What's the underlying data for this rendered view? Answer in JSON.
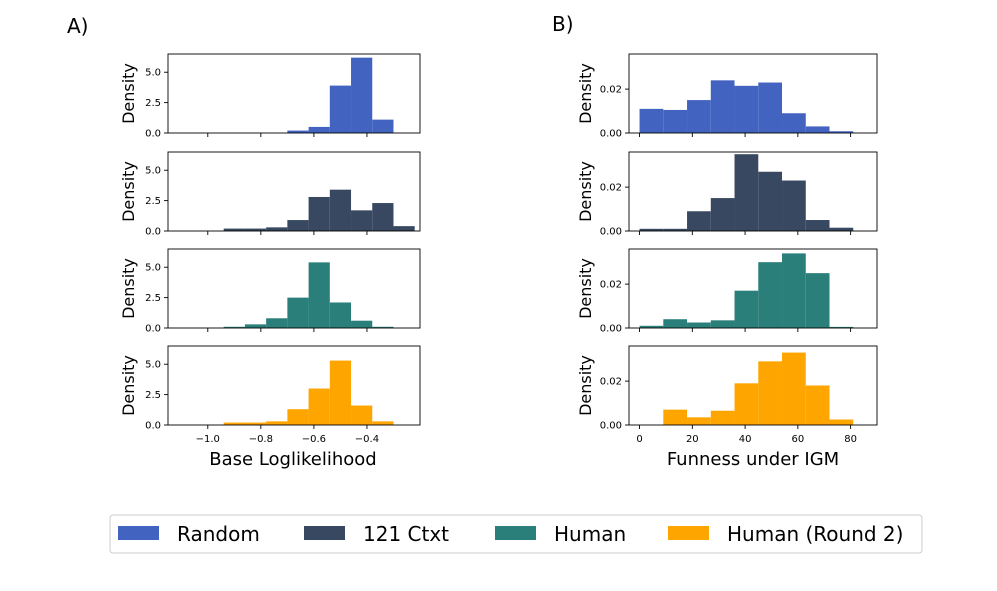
{
  "chart_data": [
    {
      "type": "histogram",
      "panel_label": "A)",
      "xlabel": "Base Loglikelihood",
      "ylabel": "Density",
      "xlim": [
        -1.15,
        -0.2
      ],
      "xticks": [
        -1.0,
        -0.8,
        -0.6,
        -0.4
      ],
      "xtick_labels": [
        "−1.0",
        "−0.8",
        "−0.6",
        "−0.4"
      ],
      "ylim": [
        0,
        6.5
      ],
      "yticks": [
        0,
        2.5,
        5.0
      ],
      "ytick_labels": [
        "0.0",
        "2.5",
        "5.0"
      ],
      "bin_edges": [
        -0.94,
        -0.86,
        -0.78,
        -0.7,
        -0.62,
        -0.54,
        -0.46,
        -0.38,
        -0.3,
        -0.22
      ],
      "series": [
        {
          "name": "Random",
          "color": "#4363c0",
          "values": [
            0,
            0,
            0,
            0.2,
            0.5,
            3.9,
            6.2,
            1.1,
            0
          ]
        },
        {
          "name": "121 Ctxt",
          "color": "#384860",
          "values": [
            0.2,
            0.2,
            0.3,
            0.9,
            2.8,
            3.4,
            1.7,
            2.3,
            0.4
          ]
        },
        {
          "name": "Human",
          "color": "#2b7f7a",
          "values": [
            0.1,
            0.3,
            0.8,
            2.5,
            5.4,
            2.1,
            0.6,
            0.1,
            0
          ]
        },
        {
          "name": "Human (Round 2)",
          "color": "#ffa500",
          "values": [
            0.2,
            0.2,
            0.3,
            1.3,
            3.0,
            5.3,
            1.6,
            0.3,
            0
          ]
        }
      ]
    },
    {
      "type": "histogram",
      "panel_label": "B)",
      "xlabel": "Funness under IGM",
      "ylabel": "Density",
      "xlim": [
        -4,
        90
      ],
      "xticks": [
        0,
        20,
        40,
        60,
        80
      ],
      "xtick_labels": [
        "0",
        "20",
        "40",
        "60",
        "80"
      ],
      "ylim": [
        0,
        0.036
      ],
      "yticks": [
        0,
        0.02
      ],
      "ytick_labels": [
        "0.00",
        "0.02"
      ],
      "bin_edges": [
        0,
        9,
        18,
        27,
        36,
        45,
        54,
        63,
        72,
        81
      ],
      "bin_edges_per_series": [
        [
          0,
          9,
          18,
          27,
          36,
          45,
          54,
          63,
          72,
          81
        ],
        [
          0,
          9,
          18,
          27,
          36,
          45,
          54,
          63,
          72,
          81
        ],
        [
          0,
          9,
          18,
          27,
          36,
          45,
          54,
          63,
          72,
          81
        ],
        [
          9,
          18,
          27,
          36,
          45,
          54,
          63,
          72,
          81
        ]
      ],
      "series": [
        {
          "name": "Random",
          "color": "#4363c0",
          "values": [
            0.011,
            0.0105,
            0.015,
            0.024,
            0.0215,
            0.023,
            0.009,
            0.003,
            0.0008
          ]
        },
        {
          "name": "121 Ctxt",
          "color": "#384860",
          "values": [
            0.001,
            0.001,
            0.009,
            0.015,
            0.035,
            0.027,
            0.023,
            0.005,
            0.0015
          ]
        },
        {
          "name": "Human",
          "color": "#2b7f7a",
          "values": [
            0.001,
            0.004,
            0.0025,
            0.0035,
            0.017,
            0.03,
            0.034,
            0.025,
            0.0005
          ]
        },
        {
          "name": "Human (Round 2)",
          "color": "#ffa500",
          "values": [
            0.007,
            0.0035,
            0.0065,
            0.019,
            0.029,
            0.033,
            0.018,
            0.0025
          ]
        }
      ]
    }
  ],
  "legend": {
    "placement": "bottom",
    "entries": [
      {
        "label": "Random",
        "color": "#4363c0"
      },
      {
        "label": "121 Ctxt",
        "color": "#384860"
      },
      {
        "label": "Human",
        "color": "#2b7f7a"
      },
      {
        "label": "Human (Round 2)",
        "color": "#ffa500"
      }
    ]
  }
}
